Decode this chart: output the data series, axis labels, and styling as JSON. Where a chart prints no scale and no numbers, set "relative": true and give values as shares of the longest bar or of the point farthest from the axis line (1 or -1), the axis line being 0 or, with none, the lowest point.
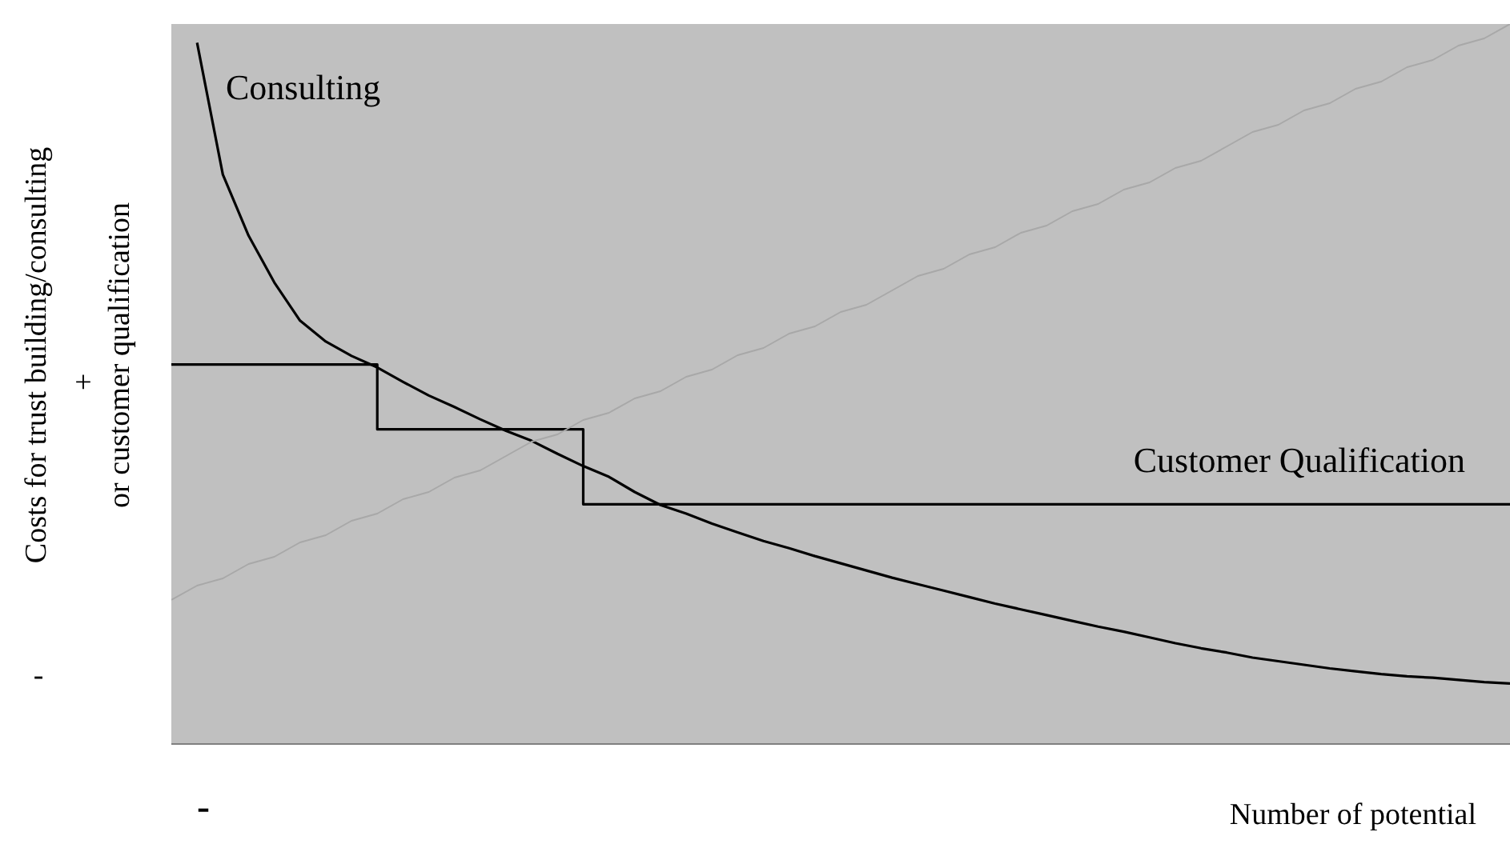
{
  "chart_data": {
    "type": "line",
    "relative": true,
    "marker": "none",
    "ylabel": "Costs for trust building/consulting\nor customer qualification",
    "xlabel": "Number of potential",
    "annotations": [
      "+",
      "-",
      "-"
    ],
    "categories": [
      null,
      null,
      null,
      null,
      null,
      null,
      null,
      null,
      null,
      null,
      null,
      null,
      null,
      null,
      null,
      null,
      null,
      null,
      null,
      null,
      null,
      null,
      null,
      null,
      null,
      null,
      null,
      null,
      null,
      null,
      null,
      null,
      null,
      null,
      null,
      null,
      null,
      null,
      null,
      null,
      null,
      null,
      null,
      null,
      null,
      null,
      null,
      null,
      null,
      null,
      null,
      null,
      null
    ],
    "series": [
      {
        "name": "Consulting",
        "color": "#000000",
        "values": [
          null,
          0.974,
          0.791,
          0.706,
          0.641,
          0.588,
          0.559,
          0.539,
          0.523,
          0.503,
          0.484,
          0.468,
          0.451,
          0.435,
          0.421,
          0.403,
          0.386,
          0.371,
          0.35,
          0.332,
          0.32,
          0.306,
          0.294,
          0.282,
          0.272,
          0.261,
          0.251,
          0.241,
          0.231,
          0.222,
          0.213,
          0.204,
          0.195,
          0.187,
          0.179,
          0.171,
          0.163,
          0.156,
          0.148,
          0.14,
          0.133,
          0.127,
          0.12,
          0.115,
          0.11,
          0.105,
          0.101,
          0.097,
          0.094,
          0.092,
          0.089,
          0.086,
          0.084
        ]
      },
      {
        "name": "Customer Qualification",
        "type": "step",
        "color": "#000000",
        "values": [
          0.527,
          0.527,
          0.527,
          0.527,
          0.527,
          0.527,
          0.527,
          0.527,
          0.437,
          0.437,
          0.437,
          0.437,
          0.437,
          0.437,
          0.437,
          0.437,
          0.333,
          0.333,
          0.333,
          0.333,
          0.333,
          0.333,
          0.333,
          0.333,
          0.333,
          0.333,
          0.333,
          0.333,
          0.333,
          0.333,
          0.333,
          0.333,
          0.333,
          0.333,
          0.333,
          0.333,
          0.333,
          0.333,
          0.333,
          0.333,
          0.333,
          0.333,
          0.333,
          0.333,
          0.333,
          0.333,
          0.333,
          0.333,
          0.333,
          0.333,
          0.333,
          0.333,
          0.333
        ]
      },
      {
        "color": "#a8a8a8",
        "values": [
          0.2,
          0.22,
          0.23,
          0.25,
          0.26,
          0.28,
          0.29,
          0.31,
          0.32,
          0.34,
          0.35,
          0.37,
          0.38,
          0.4,
          0.42,
          0.43,
          0.45,
          0.46,
          0.48,
          0.49,
          0.51,
          0.52,
          0.54,
          0.55,
          0.57,
          0.58,
          0.6,
          0.61,
          0.63,
          0.65,
          0.66,
          0.68,
          0.69,
          0.71,
          0.72,
          0.74,
          0.75,
          0.77,
          0.78,
          0.8,
          0.81,
          0.83,
          0.85,
          0.86,
          0.88,
          0.89,
          0.91,
          0.92,
          0.94,
          0.95,
          0.97,
          0.98,
          1.0
        ]
      }
    ]
  }
}
